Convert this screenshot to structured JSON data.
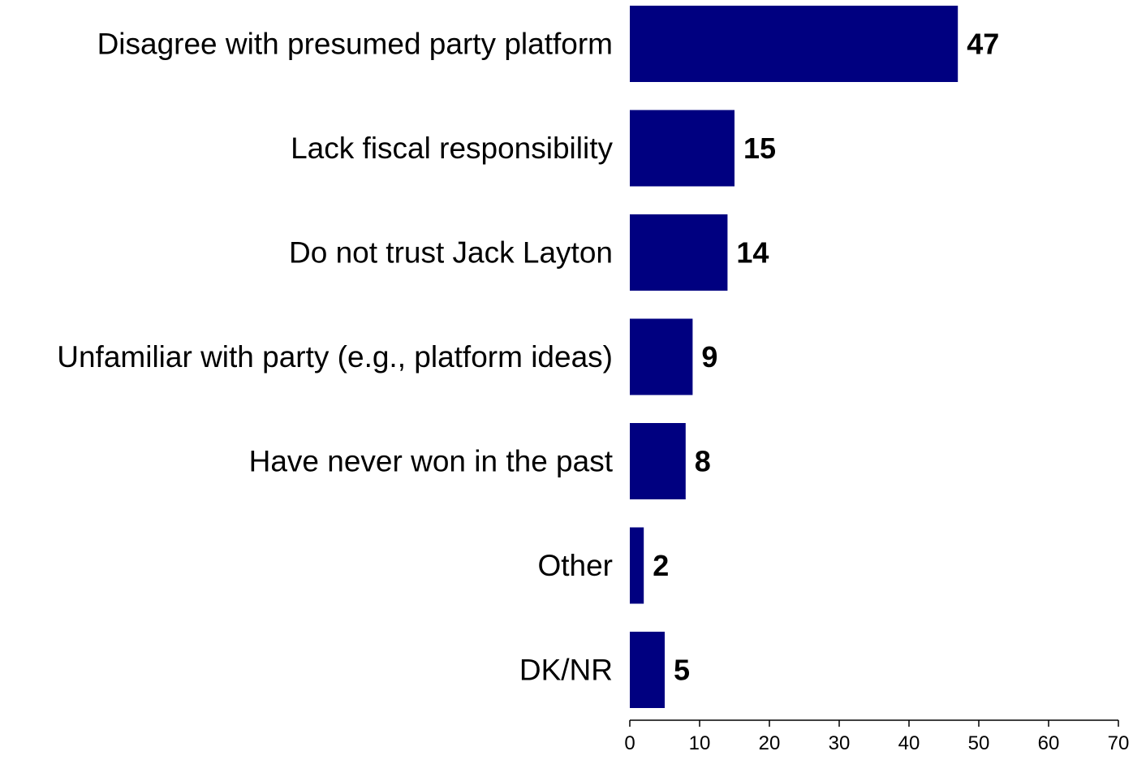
{
  "chart_data": {
    "type": "bar",
    "orientation": "horizontal",
    "categories": [
      "Disagree with presumed party platform",
      "Lack fiscal responsibility",
      "Do not trust Jack Layton",
      "Unfamiliar with party (e.g., platform ideas)",
      "Have never won in the past",
      "Other",
      "DK/NR"
    ],
    "values": [
      47,
      15,
      14,
      9,
      8,
      2,
      5
    ],
    "value_labels": [
      "47",
      "15",
      "14",
      "9",
      "8",
      "2",
      "5"
    ],
    "xlim": [
      0,
      70
    ],
    "x_ticks": [
      0,
      10,
      20,
      30,
      40,
      50,
      60,
      70
    ],
    "x_tick_labels": [
      "0",
      "10",
      "20",
      "30",
      "40",
      "50",
      "60",
      "70"
    ],
    "bar_color": "#000080",
    "grid": false,
    "legend": "none"
  }
}
